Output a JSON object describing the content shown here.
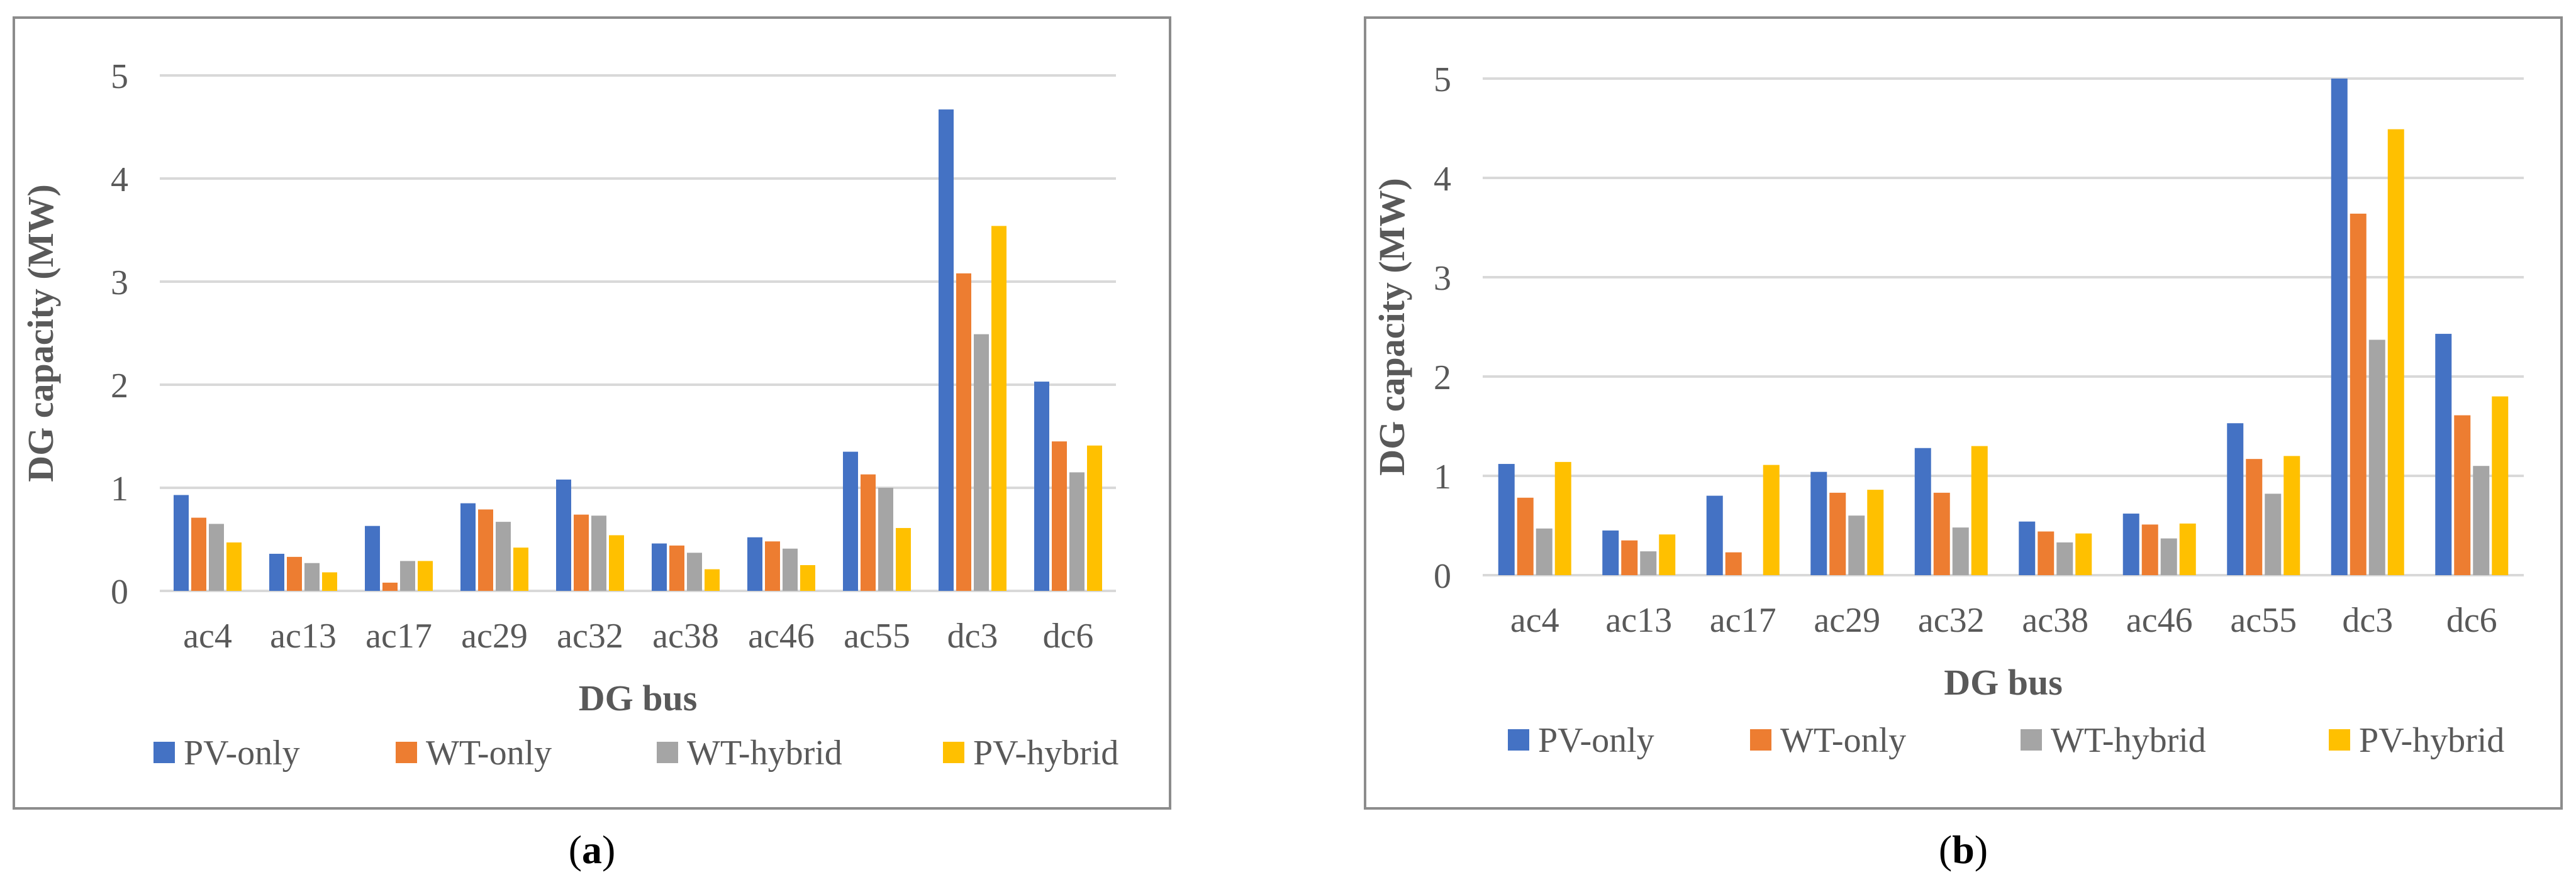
{
  "chart_data": [
    {
      "id": "a",
      "type": "bar",
      "caption": "a",
      "title": "",
      "xlabel": "DG bus",
      "ylabel": "DG capacity (MW)",
      "ylim": [
        0,
        5
      ],
      "yticks": [
        "0",
        "1",
        "2",
        "3",
        "4",
        "5"
      ],
      "grid": true,
      "legend_position": "bottom",
      "categories": [
        "ac4",
        "ac13",
        "ac17",
        "ac29",
        "ac32",
        "ac38",
        "ac46",
        "ac55",
        "dc3",
        "dc6"
      ],
      "series": [
        {
          "name": "PV-only",
          "color": "#4472C4",
          "values": [
            0.93,
            0.36,
            0.63,
            0.85,
            1.08,
            0.46,
            0.52,
            1.35,
            4.67,
            2.03
          ]
        },
        {
          "name": "WT-only",
          "color": "#ED7D31",
          "values": [
            0.71,
            0.33,
            0.08,
            0.79,
            0.74,
            0.44,
            0.48,
            1.13,
            3.08,
            1.45
          ]
        },
        {
          "name": "WT-hybrid",
          "color": "#A5A5A5",
          "values": [
            0.65,
            0.27,
            0.29,
            0.67,
            0.73,
            0.37,
            0.41,
            1.0,
            2.49,
            1.15
          ]
        },
        {
          "name": "PV-hybrid",
          "color": "#FFC000",
          "values": [
            0.47,
            0.18,
            0.29,
            0.42,
            0.54,
            0.21,
            0.25,
            0.61,
            3.54,
            1.41
          ]
        }
      ]
    },
    {
      "id": "b",
      "type": "bar",
      "caption": "b",
      "title": "",
      "xlabel": "DG bus",
      "ylabel": "DG capacity (MW)",
      "ylim": [
        0,
        5
      ],
      "yticks": [
        "0",
        "1",
        "2",
        "3",
        "4",
        "5"
      ],
      "grid": true,
      "legend_position": "bottom",
      "categories": [
        "ac4",
        "ac13",
        "ac17",
        "ac29",
        "ac32",
        "ac38",
        "ac46",
        "ac55",
        "dc3",
        "dc6"
      ],
      "series": [
        {
          "name": "PV-only",
          "color": "#4472C4",
          "values": [
            1.12,
            0.45,
            0.8,
            1.04,
            1.28,
            0.54,
            0.62,
            1.53,
            5.0,
            2.43
          ]
        },
        {
          "name": "WT-only",
          "color": "#ED7D31",
          "values": [
            0.78,
            0.35,
            0.23,
            0.83,
            0.83,
            0.44,
            0.51,
            1.17,
            3.64,
            1.61
          ]
        },
        {
          "name": "WT-hybrid",
          "color": "#A5A5A5",
          "values": [
            0.47,
            0.24,
            0.0,
            0.6,
            0.48,
            0.33,
            0.37,
            0.82,
            2.37,
            1.1
          ]
        },
        {
          "name": "PV-hybrid",
          "color": "#FFC000",
          "values": [
            1.14,
            0.41,
            1.11,
            0.86,
            1.3,
            0.42,
            0.52,
            1.2,
            4.49,
            1.8
          ]
        }
      ]
    }
  ]
}
